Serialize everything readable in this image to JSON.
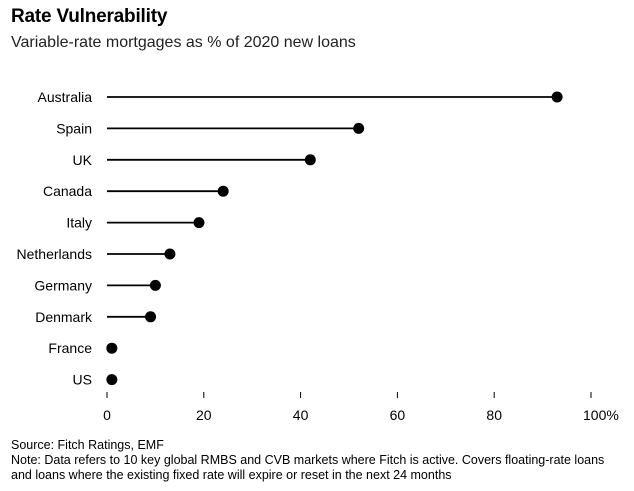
{
  "header": {
    "title": "Rate Vulnerability",
    "subtitle": "Variable-rate mortgages as % of 2020 new loans"
  },
  "footer": {
    "source": "Source: Fitch Ratings, EMF",
    "note": "Note: Data refers to 10 key global RMBS and CVB markets where Fitch is active. Covers floating-rate loans and loans where the existing fixed rate will expire or reset in the next 24 months"
  },
  "chart_data": {
    "type": "lollipop",
    "title": "Rate Vulnerability",
    "subtitle": "Variable-rate mortgages as % of 2020 new loans",
    "categories": [
      "Australia",
      "Spain",
      "UK",
      "Canada",
      "Italy",
      "Netherlands",
      "Germany",
      "Denmark",
      "France",
      "US"
    ],
    "values": [
      93,
      52,
      42,
      24,
      19,
      13,
      10,
      9,
      1,
      1
    ],
    "xlim": [
      0,
      100
    ],
    "xticks": [
      "0",
      "20",
      "40",
      "60",
      "80",
      "100%"
    ],
    "xtick_values": [
      0,
      20,
      40,
      60,
      80,
      100
    ],
    "grid": false,
    "colors": {
      "line": "#000000",
      "dot": "#000000"
    }
  }
}
